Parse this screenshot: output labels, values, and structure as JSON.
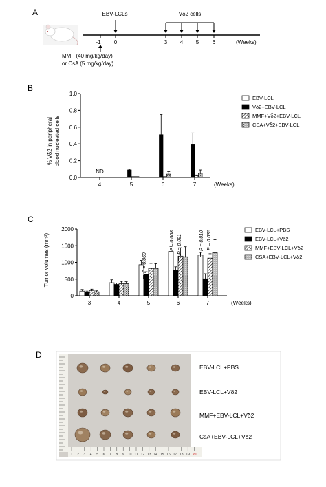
{
  "panels": {
    "A": {
      "letter": "A",
      "timeline": {
        "top_labels": [
          "EBV-LCLs",
          "Vδ2 cells"
        ],
        "ticks": [
          "-1",
          "0",
          "3",
          "4",
          "5",
          "6"
        ],
        "unit": "(Weeks)",
        "treatment_line1": "MMF (40 mg/kg/day)",
        "treatment_line2": "or CsA  (5 mg/kg/day)"
      }
    },
    "B": {
      "letter": "B"
    },
    "C": {
      "letter": "C"
    },
    "D": {
      "letter": "D",
      "row_labels": [
        "EBV-LCL+PBS",
        "EBV-LCL+Vδ2",
        "MMF+EBV-LCL+Vδ2",
        "CsA+EBV-LCL+Vδ2"
      ],
      "ruler_numbers": [
        "1",
        "2",
        "3",
        "4",
        "5",
        "6",
        "7",
        "8",
        "9",
        "10",
        "11",
        "12",
        "13",
        "14",
        "15",
        "16",
        "17",
        "18",
        "19",
        "20"
      ]
    }
  },
  "chart_data": [
    {
      "id": "B",
      "type": "bar",
      "ylabel_line1": "% Vδ2 in peripheral",
      "ylabel_line2": "blood  nucleated cells",
      "xlabel": "(Weeks)",
      "categories": [
        "4",
        "5",
        "6",
        "7"
      ],
      "ylim": [
        0,
        1.0
      ],
      "yticks": [
        "0.0",
        "0.2",
        "0.4",
        "0.6",
        "0.8",
        "1.0"
      ],
      "annotations": [
        {
          "category": "4",
          "text": "ND"
        }
      ],
      "series": [
        {
          "name": "EBV-LCL",
          "pattern": "white",
          "values": [
            0,
            0,
            0,
            0
          ],
          "errors": [
            0,
            0,
            0,
            0
          ]
        },
        {
          "name": "Vδ2+EBV-LCL",
          "pattern": "black",
          "values": [
            0,
            0.09,
            0.51,
            0.39
          ],
          "errors": [
            0,
            0.01,
            0.24,
            0.14
          ]
        },
        {
          "name": "MMF+Vδ2+EBV-LCL",
          "pattern": "hatch",
          "values": [
            0,
            0.01,
            0.01,
            0.02
          ],
          "errors": [
            0,
            0,
            0,
            0.01
          ]
        },
        {
          "name": "CSA+Vδ2+EBV-LCL",
          "pattern": "dots",
          "values": [
            0,
            0.01,
            0.04,
            0.05
          ],
          "errors": [
            0,
            0,
            0.03,
            0.04
          ]
        }
      ]
    },
    {
      "id": "C",
      "type": "bar",
      "ylabel": "Tumor volumes (mm³)",
      "xlabel": "(Weeks)",
      "categories": [
        "3",
        "4",
        "5",
        "6",
        "7"
      ],
      "ylim": [
        0,
        2000
      ],
      "yticks": [
        "0",
        "500",
        "1000",
        "1500",
        "2000"
      ],
      "pvalues": [
        {
          "category": "5",
          "text": "P = 0.069"
        },
        {
          "category": "6",
          "text": "P = 0.008"
        },
        {
          "category": "6",
          "text": "P = 0.091"
        },
        {
          "category": "7",
          "text": "P = 0.010"
        },
        {
          "category": "7",
          "text": "P = 0.036"
        }
      ],
      "series": [
        {
          "name": "EBV-LCL+PBS",
          "pattern": "white",
          "values": [
            140,
            390,
            930,
            1330,
            1220
          ],
          "errors": [
            50,
            90,
            130,
            150,
            80
          ]
        },
        {
          "name": "EBV-LCL+Vδ2",
          "pattern": "black",
          "values": [
            110,
            340,
            640,
            760,
            510
          ],
          "errors": [
            30,
            40,
            80,
            110,
            150
          ]
        },
        {
          "name": "MMF+EBV-LCL+Vδ2",
          "pattern": "hatch",
          "values": [
            160,
            360,
            820,
            1190,
            1130
          ],
          "errors": [
            40,
            70,
            150,
            250,
            130
          ]
        },
        {
          "name": "CSA+EBV-LCL+Vδ2",
          "pattern": "dots",
          "values": [
            120,
            360,
            820,
            1170,
            1290
          ],
          "errors": [
            30,
            60,
            140,
            300,
            390
          ]
        }
      ]
    }
  ]
}
